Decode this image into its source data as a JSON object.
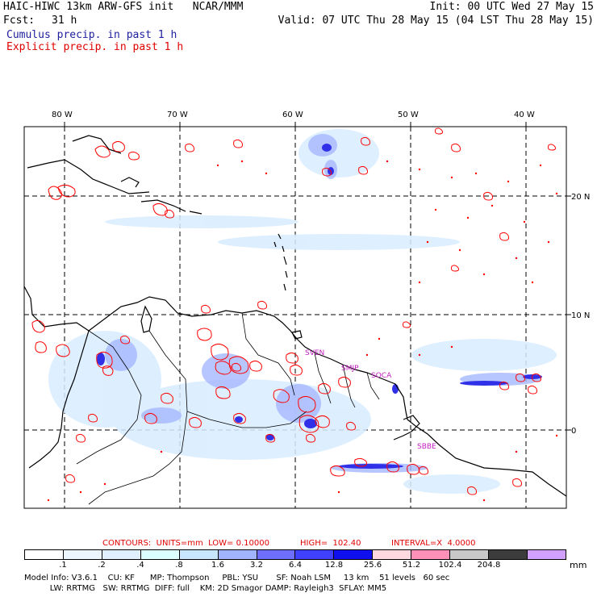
{
  "header": {
    "title_left": "HAIC-HIWC 13km ARW-GFS init   NCAR/MMM",
    "init": "Init: 00 UTC Wed 27 May 15",
    "fcst_label": "Fcst:",
    "fcst_value": "31 h",
    "valid": "Valid: 07 UTC Thu 28 May 15 (04 LST Thu 28 May 15)",
    "legend_cumulus": "Cumulus precip. in past 1 h",
    "legend_explicit": "Explicit precip. in past 1 h"
  },
  "map": {
    "lon_labels": [
      "80 W",
      "70 W",
      "60 W",
      "50 W",
      "40 W"
    ],
    "lat_labels": [
      "20 N",
      "10 N",
      "0"
    ],
    "city_labels": [
      "SVEN",
      "SMJP",
      "SOCA",
      "SBBE"
    ],
    "colors": {
      "cumulus": "#4040ff",
      "explicit": "#ff0000",
      "coast": "#000000"
    }
  },
  "contours_info": {
    "contours": "CONTOURS:  UNITS=mm  LOW= 0.10000",
    "high": "HIGH=  102.40",
    "interval": "INTERVAL=X  4.0000"
  },
  "colorbar": {
    "labels": [
      ".1",
      ".2",
      ".4",
      ".8",
      "1.6",
      "3.2",
      "6.4",
      "12.8",
      "25.6",
      "51.2",
      "102.4",
      "204.8"
    ],
    "unit": "mm",
    "colors": [
      "#ffffff",
      "#ecf6ff",
      "#e0f0ff",
      "#dcffff",
      "#c8e6ff",
      "#a0b4ff",
      "#6e6eff",
      "#4040ff",
      "#1010ee",
      "#ffd8e0",
      "#ff90b8",
      "#c8c8c8",
      "#3c3c3c",
      "#d2a0ff"
    ]
  },
  "model_info": {
    "line1": "Model Info: V3.6.1    CU: KF      MP: Thompson     PBL: YSU       SF: Noah LSM     13 km    51 levels   60 sec",
    "line2": "          LW: RRTMG   SW: RRTMG  DIFF: full    KM: 2D Smagor DAMP: Rayleigh3  SFLAY: MM5"
  }
}
